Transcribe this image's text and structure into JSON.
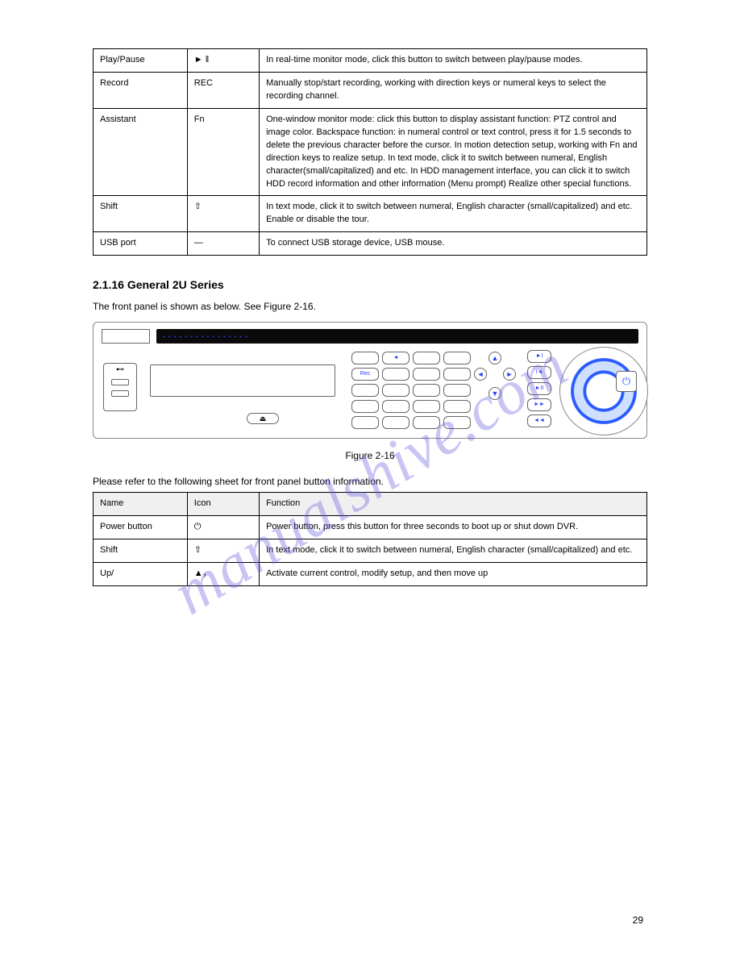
{
  "watermark_text": "manualshive.com",
  "page_number": "29",
  "table1": {
    "rows": [
      {
        "name": "Play/Pause",
        "icon": "► ‖",
        "func": "In real-time monitor mode, click this button to switch between play/pause modes."
      },
      {
        "name": "Record",
        "icon": "REC",
        "func": "Manually stop/start recording, working with direction keys or numeral keys to select the recording channel."
      },
      {
        "name": "Assistant",
        "icon": "Fn",
        "func": "One-window monitor mode: click this button to display assistant function: PTZ control and image color.\nBackspace function: in numeral control or text control, press it for 1.5 seconds to delete the previous character before the cursor.\nIn motion detection setup, working with Fn and direction keys to realize setup.\nIn text mode, click it to switch between numeral, English character(small/capitalized) and etc.\nIn HDD management interface, you can click it to switch HDD record information and other information (Menu prompt)\nRealize other special functions."
      },
      {
        "name": "Shift",
        "icon": "⇧",
        "func": "In text mode, click it to switch between numeral, English character (small/capitalized) and etc.\nEnable or disable the tour."
      },
      {
        "name": "USB port",
        "icon": "—",
        "func": "To connect USB storage device, USB mouse."
      }
    ]
  },
  "section_title": "2.1.16 General 2U Series",
  "section_intro": "The front panel is shown as below. See Figure 2-16.",
  "figure_label": "Figure 2-16",
  "table2_caption": "Please refer to the following sheet for front panel button information.",
  "table2": {
    "headers": [
      "Name",
      "Icon",
      "Function"
    ],
    "rows": [
      {
        "name": "Power button",
        "icon": "⏻",
        "func": "Power button, press this button for three seconds to boot up or shut down DVR."
      },
      {
        "name": "Shift",
        "icon": "⇧",
        "func": "In text mode, click it to switch between numeral, English character (small/capitalized) and etc."
      },
      {
        "name": "Up/",
        "icon": "▲，",
        "func": "Activate current control, modify setup, and then move up"
      }
    ]
  },
  "device": {
    "eject_label": "⏏",
    "power_label": "⏻",
    "usb_glyph": "⊷"
  },
  "colors": {
    "watermark": "rgba(100,90,220,0.35)",
    "accent_blue": "#2a5bff",
    "border": "#000000"
  }
}
